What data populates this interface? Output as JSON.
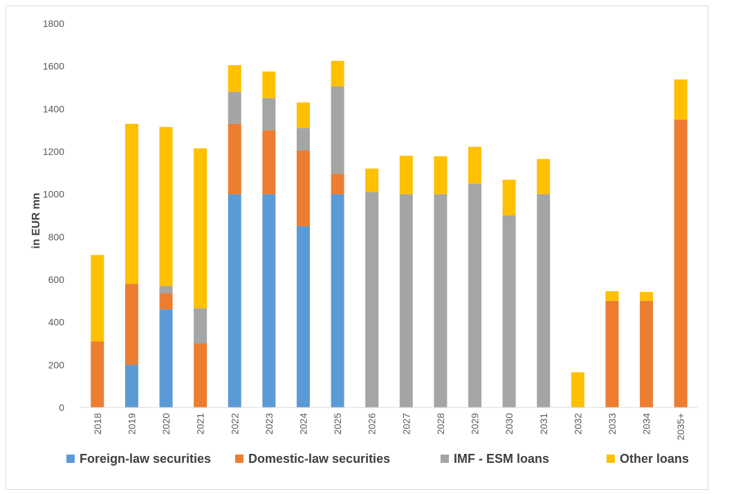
{
  "chart_data": {
    "type": "bar",
    "stacked": true,
    "title": "",
    "xlabel": "",
    "ylabel": "in EUR mn",
    "ylim": [
      0,
      1800
    ],
    "yticks": [
      0,
      200,
      400,
      600,
      800,
      1000,
      1200,
      1400,
      1600,
      1800
    ],
    "grid": false,
    "legend_position": "bottom",
    "categories": [
      "2018",
      "2019",
      "2020",
      "2021",
      "2022",
      "2023",
      "2024",
      "2025",
      "2026",
      "2027",
      "2028",
      "2029",
      "2030",
      "2031",
      "2032",
      "2033",
      "2034",
      "2035+"
    ],
    "series": [
      {
        "name": "Foreign-law securities",
        "color": "#5b9bd5",
        "values": [
          0,
          200,
          460,
          0,
          1000,
          1000,
          850,
          1000,
          0,
          0,
          0,
          0,
          0,
          0,
          0,
          0,
          0,
          0
        ]
      },
      {
        "name": "Domestic-law securities",
        "color": "#ed7d31",
        "values": [
          310,
          380,
          75,
          300,
          330,
          300,
          355,
          95,
          0,
          0,
          0,
          0,
          0,
          0,
          0,
          500,
          500,
          1350
        ]
      },
      {
        "name": "IMF - ESM loans",
        "color": "#a5a5a5",
        "values": [
          0,
          0,
          35,
          165,
          150,
          150,
          105,
          410,
          1010,
          1000,
          1000,
          1050,
          900,
          1000,
          0,
          0,
          0,
          0
        ]
      },
      {
        "name": "Other loans",
        "color": "#ffc000",
        "values": [
          405,
          750,
          745,
          750,
          125,
          125,
          120,
          120,
          110,
          180,
          178,
          172,
          168,
          165,
          165,
          45,
          42,
          188
        ]
      }
    ]
  }
}
